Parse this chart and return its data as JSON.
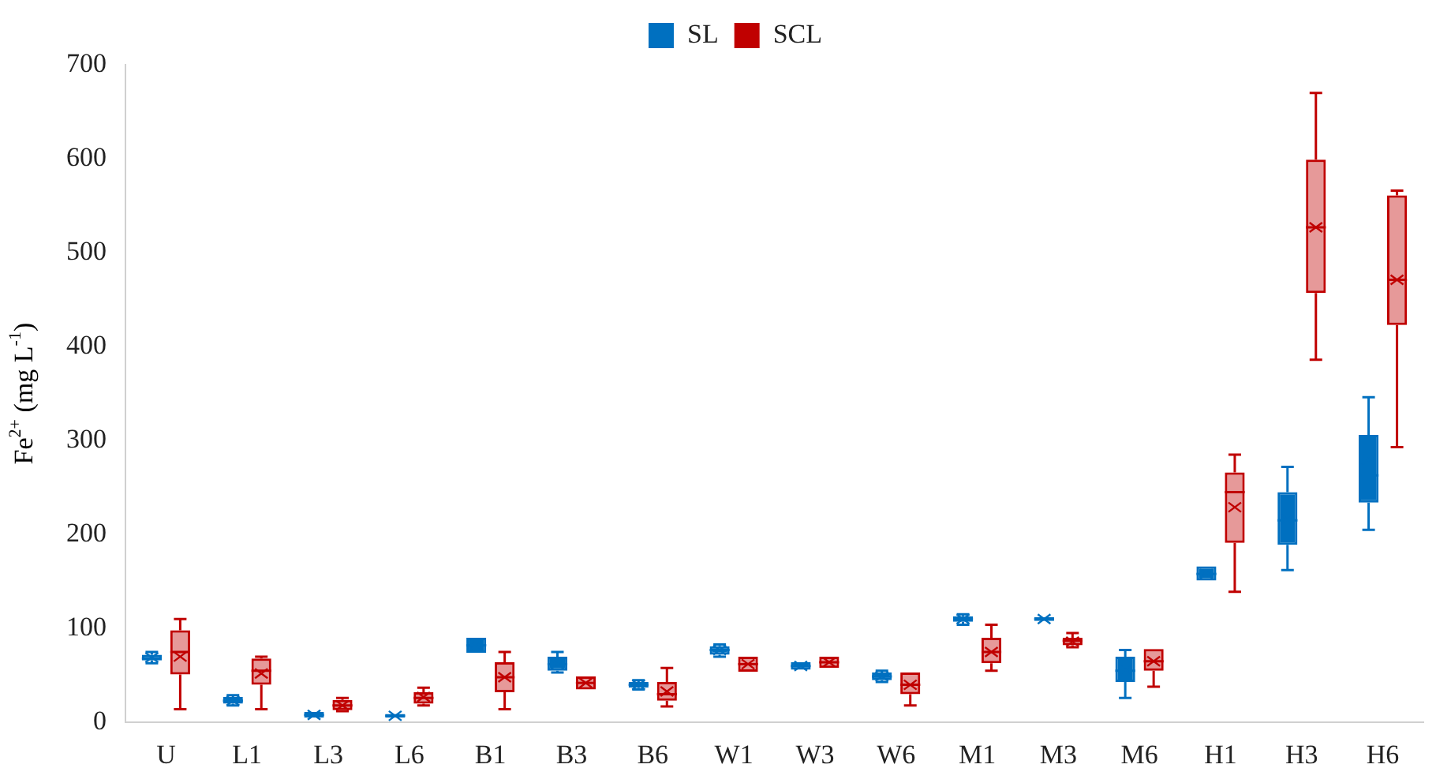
{
  "chart_data": {
    "type": "box",
    "ylabel": "Fe$^{2+}$ (mg L$^{-1}$)",
    "categories": [
      "U",
      "L1",
      "L3",
      "L6",
      "B1",
      "B3",
      "B6",
      "W1",
      "W3",
      "W6",
      "M1",
      "M3",
      "M6",
      "H1",
      "H3",
      "H6"
    ],
    "ylim": [
      0,
      700
    ],
    "yticks": [
      0,
      100,
      200,
      300,
      400,
      500,
      600,
      700
    ],
    "grid": false,
    "legend": "top",
    "series": [
      {
        "name": "SL",
        "color": "#0070c0",
        "boxes": [
          {
            "low": 63,
            "q1": 66,
            "median": 68,
            "q3": 72,
            "high": 75,
            "mean": 69
          },
          {
            "low": 18,
            "q1": 20,
            "median": 23,
            "q3": 27,
            "high": 29,
            "mean": 23
          },
          {
            "low": 5,
            "q1": 5,
            "median": 8,
            "q3": 11,
            "high": 11,
            "mean": 8
          },
          {
            "low": 5,
            "q1": 5,
            "median": 7,
            "q3": 9,
            "high": 9,
            "mean": 7
          },
          {
            "low": 74,
            "q1": 74,
            "median": 82,
            "q3": 90,
            "high": 90,
            "mean": 82
          },
          {
            "low": 53,
            "q1": 55,
            "median": 62,
            "q3": 70,
            "high": 75,
            "mean": 62
          },
          {
            "low": 35,
            "q1": 37,
            "median": 40,
            "q3": 43,
            "high": 45,
            "mean": 40
          },
          {
            "low": 70,
            "q1": 72,
            "median": 77,
            "q3": 81,
            "high": 83,
            "mean": 77
          },
          {
            "low": 56,
            "q1": 56,
            "median": 60,
            "q3": 64,
            "high": 64,
            "mean": 60
          },
          {
            "low": 43,
            "q1": 45,
            "median": 49,
            "q3": 53,
            "high": 55,
            "mean": 49
          },
          {
            "low": 104,
            "q1": 107,
            "median": 110,
            "q3": 113,
            "high": 115,
            "mean": 110
          },
          {
            "low": 108,
            "q1": 108,
            "median": 110,
            "q3": 112,
            "high": 112,
            "mean": 110
          },
          {
            "low": 26,
            "q1": 43,
            "median": 55,
            "q3": 70,
            "high": 77,
            "mean": 56
          },
          {
            "low": 151,
            "q1": 151,
            "median": 158,
            "q3": 166,
            "high": 166,
            "mean": 158
          },
          {
            "low": 162,
            "q1": 189,
            "median": 215,
            "q3": 245,
            "high": 272,
            "mean": 216
          },
          {
            "low": 205,
            "q1": 234,
            "median": 263,
            "q3": 306,
            "high": 346,
            "mean": 280
          }
        ]
      },
      {
        "name": "SCL",
        "color": "#c00000",
        "boxes": [
          {
            "low": 14,
            "q1": 51,
            "median": 75,
            "q3": 98,
            "high": 110,
            "mean": 70
          },
          {
            "low": 14,
            "q1": 40,
            "median": 55,
            "q3": 68,
            "high": 70,
            "mean": 52
          },
          {
            "low": 12,
            "q1": 13,
            "median": 18,
            "q3": 24,
            "high": 26,
            "mean": 18
          },
          {
            "low": 18,
            "q1": 20,
            "median": 26,
            "q3": 32,
            "high": 37,
            "mean": 27
          },
          {
            "low": 14,
            "q1": 32,
            "median": 48,
            "q3": 64,
            "high": 75,
            "mean": 48
          },
          {
            "low": 35,
            "q1": 35,
            "median": 42,
            "q3": 49,
            "high": 49,
            "mean": 42
          },
          {
            "low": 17,
            "q1": 23,
            "median": 30,
            "q3": 43,
            "high": 58,
            "mean": 33
          },
          {
            "low": 54,
            "q1": 54,
            "median": 62,
            "q3": 70,
            "high": 70,
            "mean": 62
          },
          {
            "low": 58,
            "q1": 58,
            "median": 64,
            "q3": 70,
            "high": 70,
            "mean": 64
          },
          {
            "low": 18,
            "q1": 30,
            "median": 40,
            "q3": 53,
            "high": 53,
            "mean": 40
          },
          {
            "low": 55,
            "q1": 63,
            "median": 75,
            "q3": 90,
            "high": 104,
            "mean": 75
          },
          {
            "low": 80,
            "q1": 82,
            "median": 87,
            "q3": 90,
            "high": 95,
            "mean": 86
          },
          {
            "low": 38,
            "q1": 55,
            "median": 65,
            "q3": 78,
            "high": 78,
            "mean": 65
          },
          {
            "low": 139,
            "q1": 191,
            "median": 245,
            "q3": 266,
            "high": 285,
            "mean": 229
          },
          {
            "low": 386,
            "q1": 457,
            "median": 527,
            "q3": 599,
            "high": 670,
            "mean": 527
          },
          {
            "low": 293,
            "q1": 423,
            "median": 471,
            "q3": 561,
            "high": 566,
            "mean": 471
          }
        ]
      }
    ]
  }
}
